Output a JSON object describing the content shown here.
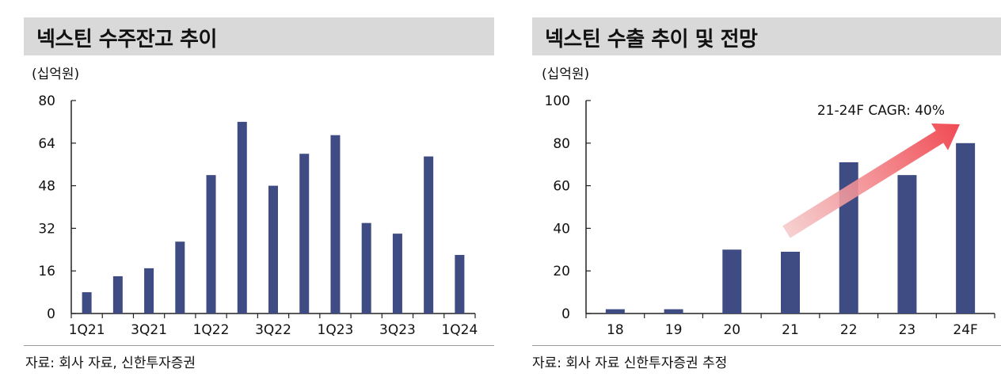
{
  "colors": {
    "bar": "#3f4c83",
    "axis": "#222222",
    "arrow_start": "#f4c8c8",
    "arrow_end": "#f0404a"
  },
  "left": {
    "title": "넥스틴 수주잔고 추이",
    "unit": "(십억원)",
    "source": "자료: 회사 자료, 신한투자증권"
  },
  "right": {
    "title": "넥스틴 수출 추이 및 전망",
    "unit": "(십억원)",
    "source": "자료: 회사 자료 신한투자증권 추정",
    "annotation": "21-24F CAGR: 40%"
  },
  "chart_data": [
    {
      "type": "bar",
      "title": "넥스틴 수주잔고 추이",
      "ylabel": "(십억원)",
      "ylim": [
        0,
        80
      ],
      "yticks": [
        0,
        16,
        32,
        48,
        64,
        80
      ],
      "categories": [
        "1Q21",
        "2Q21",
        "3Q21",
        "4Q21",
        "1Q22",
        "2Q22",
        "3Q22",
        "4Q22",
        "1Q23",
        "2Q23",
        "3Q23",
        "4Q23",
        "1Q24"
      ],
      "x_tick_labels": [
        "1Q21",
        "",
        "3Q21",
        "",
        "1Q22",
        "",
        "3Q22",
        "",
        "1Q23",
        "",
        "3Q23",
        "",
        "1Q24"
      ],
      "values": [
        8,
        14,
        17,
        27,
        52,
        72,
        48,
        60,
        67,
        34,
        30,
        59,
        22
      ],
      "grid": false
    },
    {
      "type": "bar",
      "title": "넥스틴 수출 추이 및 전망",
      "ylabel": "(십억원)",
      "ylim": [
        0,
        100
      ],
      "yticks": [
        0,
        20,
        40,
        60,
        80,
        100
      ],
      "categories": [
        "18",
        "19",
        "20",
        "21",
        "22",
        "23",
        "24F"
      ],
      "values": [
        2,
        2,
        30,
        29,
        71,
        65,
        80
      ],
      "annotation": "21-24F CAGR: 40%",
      "grid": false
    }
  ]
}
